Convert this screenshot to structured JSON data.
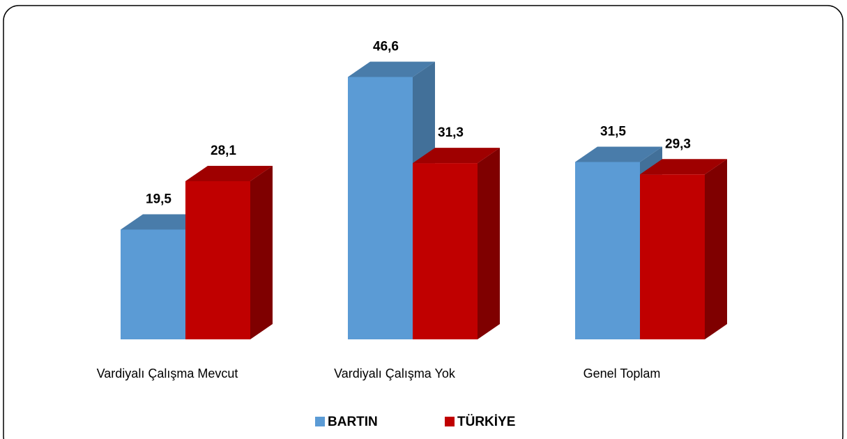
{
  "chart_data": {
    "type": "bar3d",
    "categories": [
      "Vardiyalı Çalışma Mevcut",
      "Vardiyalı Çalışma Yok",
      "Genel Toplam"
    ],
    "series": [
      {
        "name": "BARTIN",
        "color": "#5b9bd5",
        "values": [
          19.5,
          46.6,
          31.5
        ],
        "value_labels": [
          "19,5",
          "46,6",
          "31,5"
        ]
      },
      {
        "name": "TÜRKİYE",
        "color": "#c00000",
        "values": [
          28.1,
          31.3,
          29.3
        ],
        "value_labels": [
          "28,1",
          "31,3",
          "29,3"
        ]
      }
    ]
  }
}
